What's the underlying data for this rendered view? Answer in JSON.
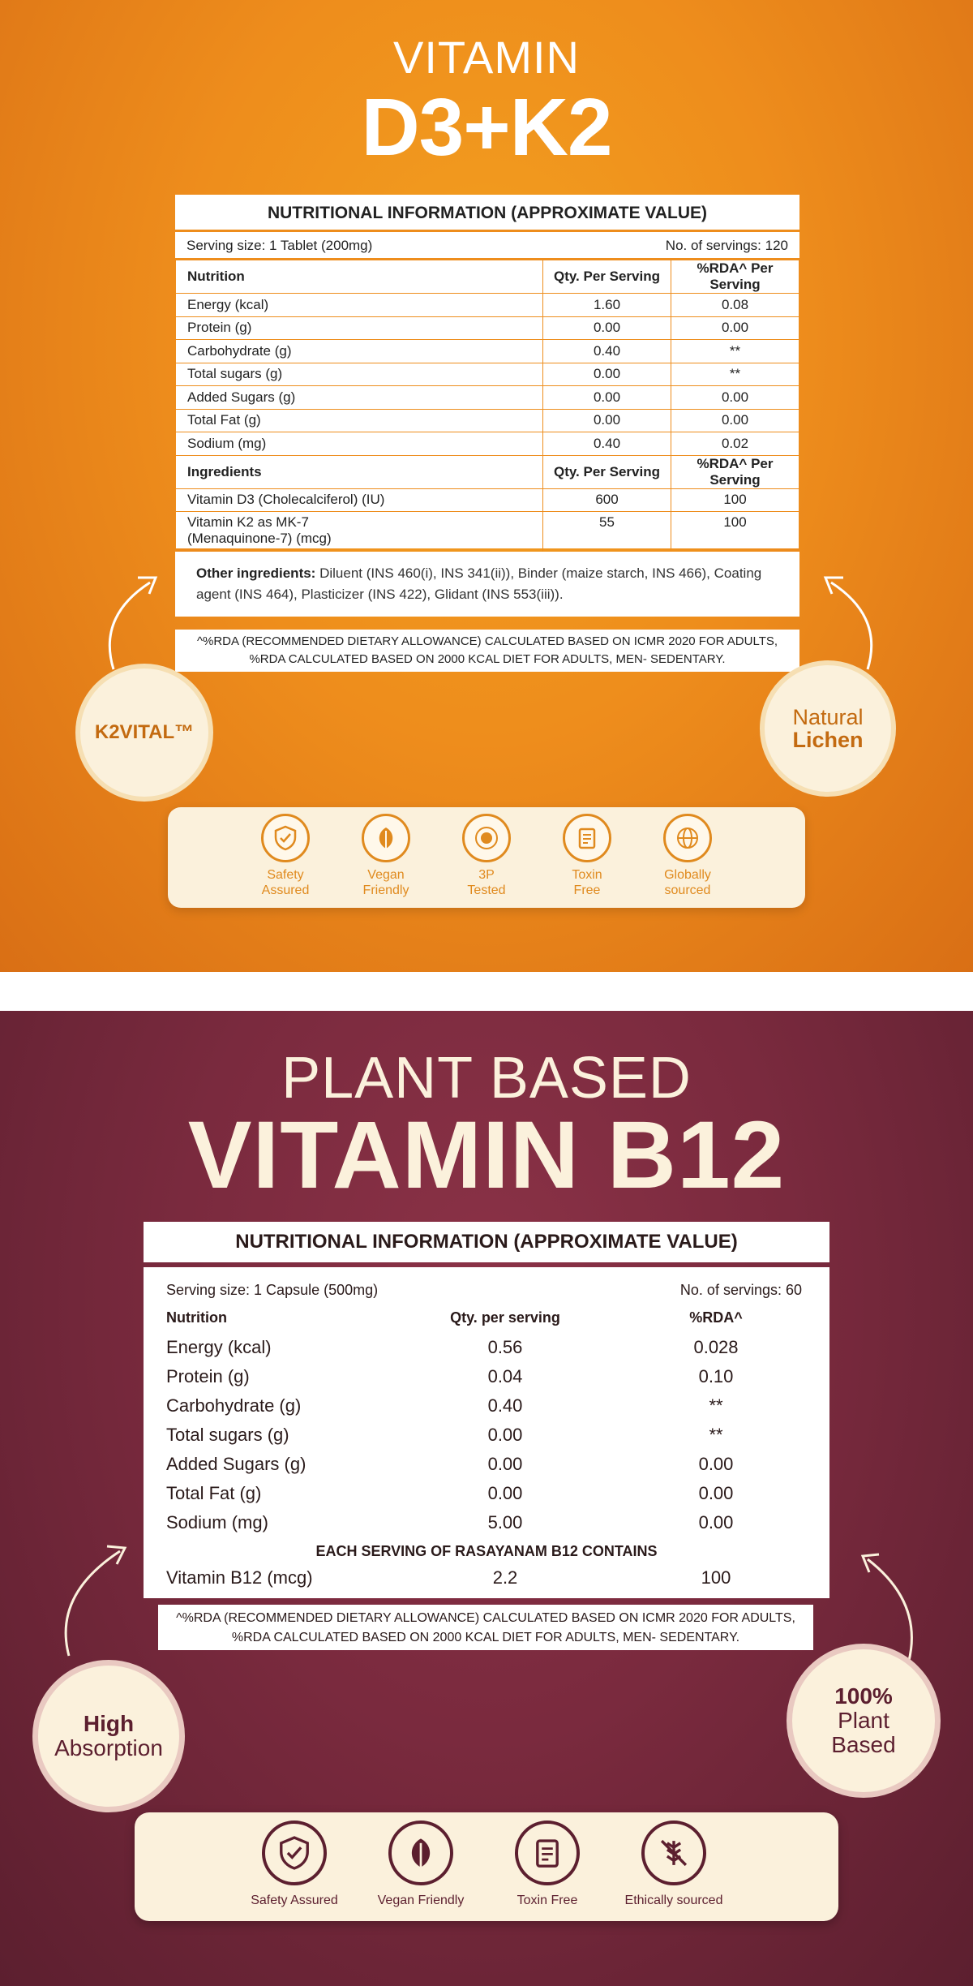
{
  "panel1": {
    "title_small": "VITAMIN",
    "title_big": "D3+K2",
    "table_title": "NUTRITIONAL INFORMATION (APPROXIMATE VALUE)",
    "serving_size": "Serving size:  1 Tablet (200mg)",
    "servings": "No. of servings: 120",
    "header": [
      "Nutrition",
      "Qty. Per Serving",
      "%RDA^ Per Serving"
    ],
    "rows": [
      [
        "Energy (kcal)",
        "1.60",
        "0.08"
      ],
      [
        "Protein (g)",
        "0.00",
        "0.00"
      ],
      [
        "Carbohydrate (g)",
        "0.40",
        "**"
      ],
      [
        "Total sugars (g)",
        "0.00",
        "**"
      ],
      [
        "Added Sugars (g)",
        "0.00",
        "0.00"
      ],
      [
        "Total Fat (g)",
        "0.00",
        "0.00"
      ],
      [
        "Sodium (mg)",
        "0.40",
        "0.02"
      ]
    ],
    "ing_header": [
      "Ingredients",
      "Qty. Per Serving",
      "%RDA^ Per Serving"
    ],
    "ing_rows": [
      [
        "Vitamin D3 (Cholecalciferol) (IU)",
        "600",
        "100"
      ],
      [
        "Vitamin K2 as MK-7",
        "55",
        "100"
      ]
    ],
    "ing_row2_line2": "(Menaquinone-7) (mcg)",
    "other_label": "Other ingredients:",
    "other_text": " Diluent (INS 460(i), INS 341(ii)),  Binder (maize starch,  INS  466), Coating agent (INS 464), Plasticizer (INS 422), Glidant (INS 553(iii)).",
    "rda_line1": "^%RDA (RECOMMENDED DIETARY ALLOWANCE) CALCULATED BASED ON ICMR 2020 FOR ADULTS,",
    "rda_line2": "%RDA CALCULATED BASED ON 2000 KCAL DIET FOR ADULTS, MEN- SEDENTARY.",
    "badge_left": "K2VITAL™",
    "badge_right_top": "Natural",
    "badge_right_bottom": "Lichen",
    "icons": [
      {
        "icon": "shield-check-icon",
        "l1": "Safety",
        "l2": "Assured"
      },
      {
        "icon": "leaf-icon",
        "l1": "Vegan",
        "l2": "Friendly"
      },
      {
        "icon": "tested-seal-icon",
        "l1": "3P",
        "l2": "Tested"
      },
      {
        "icon": "clipboard-icon",
        "l1": "Toxin",
        "l2": "Free"
      },
      {
        "icon": "globe-icon",
        "l1": "Globally",
        "l2": "sourced"
      }
    ],
    "colors": {
      "accent": "#ee8d1c",
      "cream": "#fbf1dc"
    }
  },
  "panel2": {
    "title_small": "PLANT BASED",
    "title_big": "VITAMIN B12",
    "table_title": "NUTRITIONAL INFORMATION (APPROXIMATE VALUE)",
    "serving_size": "Serving size:  1 Capsule (500mg)",
    "servings": "No. of servings: 60",
    "header": [
      "Nutrition",
      "Qty. per serving",
      "%RDA^"
    ],
    "rows": [
      [
        "Energy (kcal)",
        "0.56",
        "0.028"
      ],
      [
        "Protein (g)",
        "0.04",
        "0.10"
      ],
      [
        "Carbohydrate (g)",
        "0.40",
        "**"
      ],
      [
        "Total sugars (g)",
        "0.00",
        "**"
      ],
      [
        "Added Sugars (g)",
        "0.00",
        "0.00"
      ],
      [
        "Total Fat (g)",
        "0.00",
        "0.00"
      ],
      [
        "Sodium (mg)",
        "5.00",
        "0.00"
      ]
    ],
    "each_serving": "EACH SERVING OF RASAYANAM B12 CONTAINS",
    "b12_row": [
      "Vitamin B12 (mcg)",
      "2.2",
      "100"
    ],
    "rda_line1": "^%RDA (RECOMMENDED DIETARY ALLOWANCE) CALCULATED BASED ON ICMR 2020 FOR ADULTS,",
    "rda_line2": "%RDA CALCULATED BASED ON 2000 KCAL DIET FOR ADULTS, MEN- SEDENTARY.",
    "badge_left_top": "High",
    "badge_left_bottom": "Absorption",
    "badge_right_top": "100%",
    "badge_right_mid": "Plant",
    "badge_right_bottom": "Based",
    "icons": [
      {
        "icon": "shield-check-icon",
        "label": "Safety Assured"
      },
      {
        "icon": "leaf-icon",
        "label": "Vegan Friendly"
      },
      {
        "icon": "clipboard-icon",
        "label": "Toxin Free"
      },
      {
        "icon": "no-grain-icon",
        "label": "Ethically sourced"
      }
    ],
    "colors": {
      "accent": "#5c1f2f",
      "cream": "#fbf1dc"
    }
  }
}
